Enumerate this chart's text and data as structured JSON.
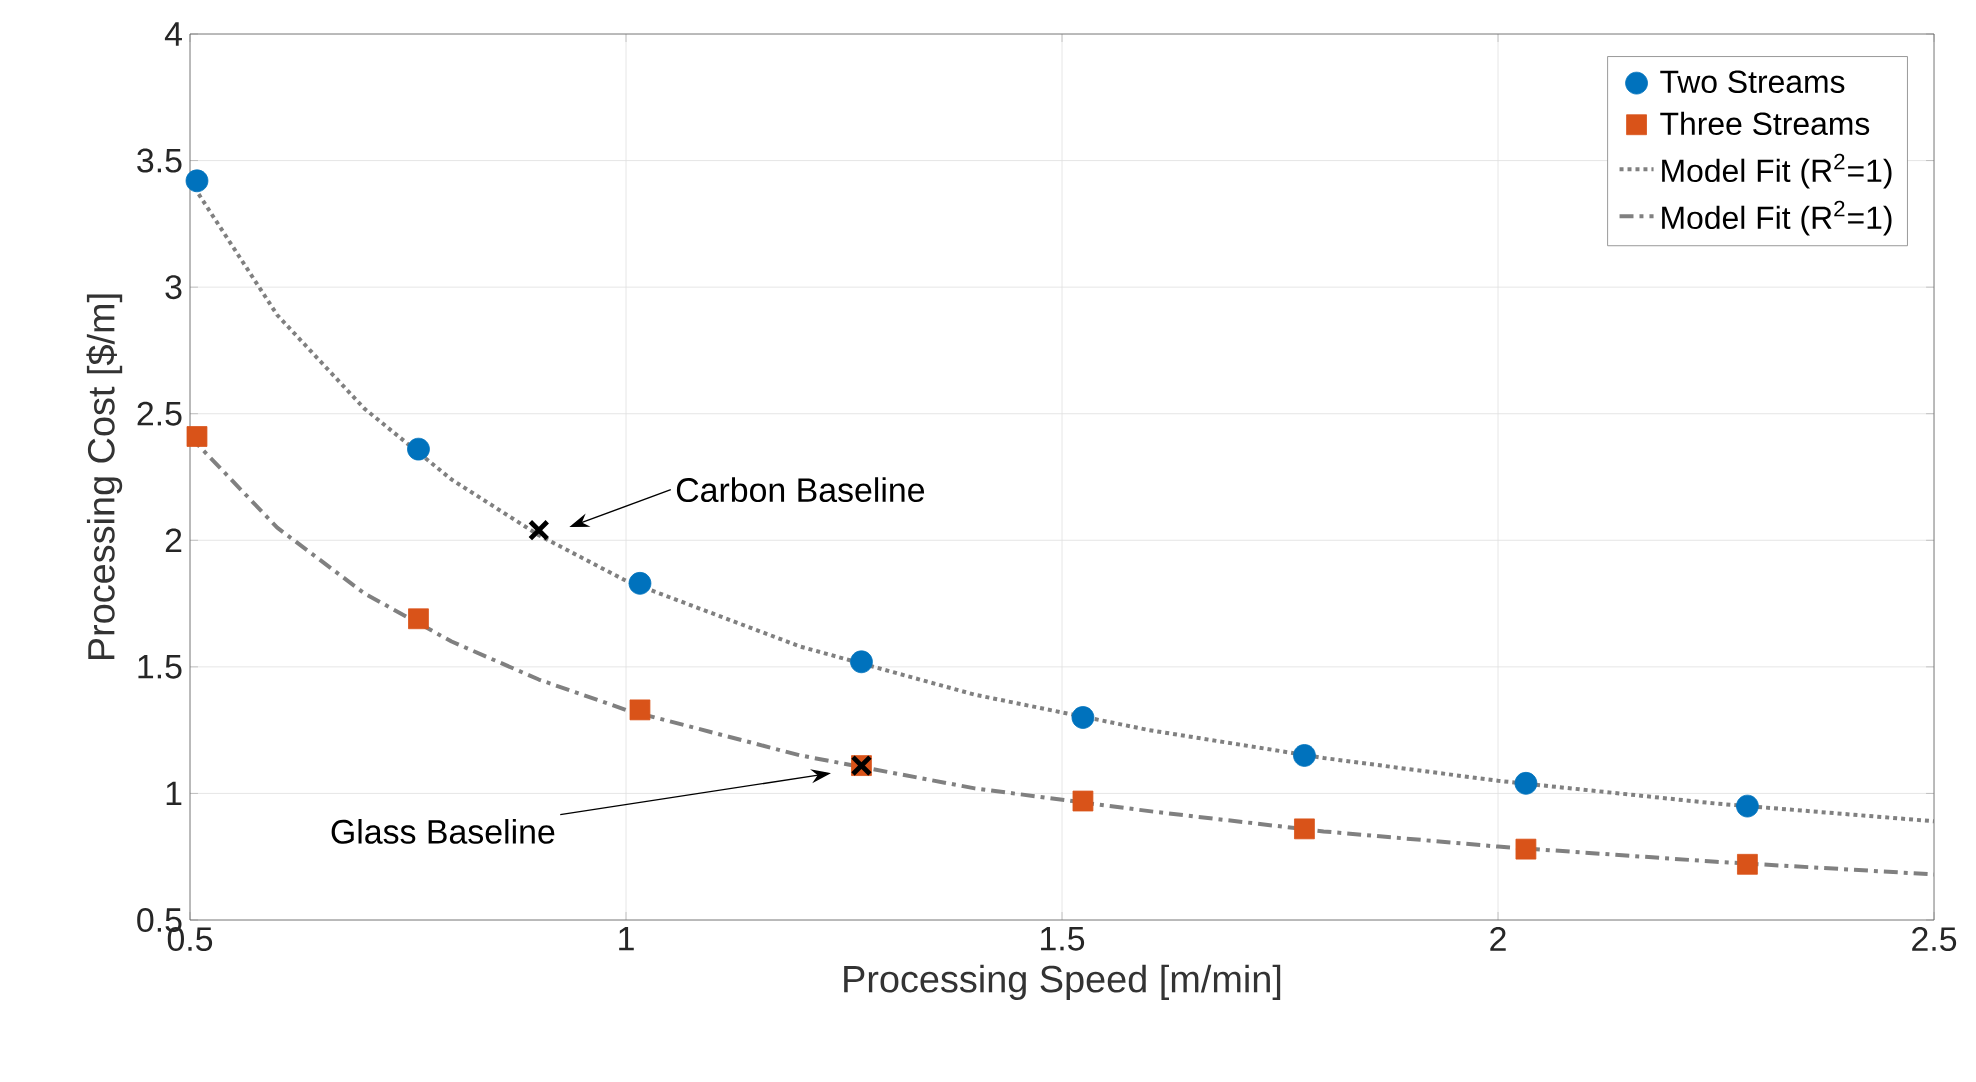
{
  "chart_data": {
    "type": "scatter",
    "xlabel": "Processing Speed [m/min]",
    "ylabel": "Processing Cost [$/m]",
    "xlim": [
      0.5,
      2.5
    ],
    "xticks": [
      0.5,
      1,
      1.5,
      2,
      2.5
    ],
    "ylim": [
      0.5,
      4
    ],
    "yticks": [
      0.5,
      1,
      1.5,
      2,
      2.5,
      3,
      3.5,
      4
    ],
    "grid": true,
    "legend": "top right",
    "series": [
      {
        "name": "Two Streams",
        "marker": "circle",
        "color": "#0072bd",
        "x": [
          0.508,
          0.762,
          1.016,
          1.27,
          1.524,
          1.778,
          2.032,
          2.286
        ],
        "values": [
          3.42,
          2.36,
          1.83,
          1.52,
          1.3,
          1.15,
          1.04,
          0.95
        ]
      },
      {
        "name": "Three Streams",
        "marker": "square",
        "color": "#d95319",
        "x": [
          0.508,
          0.762,
          1.016,
          1.27,
          1.524,
          1.778,
          2.032,
          2.286
        ],
        "values": [
          2.41,
          1.69,
          1.33,
          1.11,
          0.97,
          0.86,
          0.78,
          0.72
        ]
      },
      {
        "name": "Model Fit (R$^{2}$=1)",
        "type": "line",
        "line_style": "dotted",
        "color": "#808080",
        "x": [
          0.5,
          0.6,
          0.7,
          0.8,
          0.9,
          1.0,
          1.2,
          1.4,
          1.6,
          1.8,
          2.0,
          2.25,
          2.5
        ],
        "values": [
          3.42,
          2.89,
          2.52,
          2.24,
          2.02,
          1.84,
          1.58,
          1.39,
          1.25,
          1.14,
          1.05,
          0.96,
          0.89
        ]
      },
      {
        "name": "Model Fit (R$^{2}$=1)",
        "type": "line",
        "line_style": "dashdot",
        "color": "#808080",
        "x": [
          0.5,
          0.6,
          0.7,
          0.8,
          0.9,
          1.0,
          1.2,
          1.4,
          1.6,
          1.8,
          2.0,
          2.25,
          2.5
        ],
        "values": [
          2.41,
          2.05,
          1.79,
          1.6,
          1.45,
          1.33,
          1.15,
          1.02,
          0.93,
          0.85,
          0.79,
          0.73,
          0.68
        ]
      },
      {
        "marker": "cross",
        "color": "#000000",
        "x": [
          0.9,
          1.27
        ],
        "values": [
          2.04,
          1.11
        ]
      }
    ],
    "annotations": [
      "Carbon Baseline",
      "Glass Baseline"
    ]
  }
}
